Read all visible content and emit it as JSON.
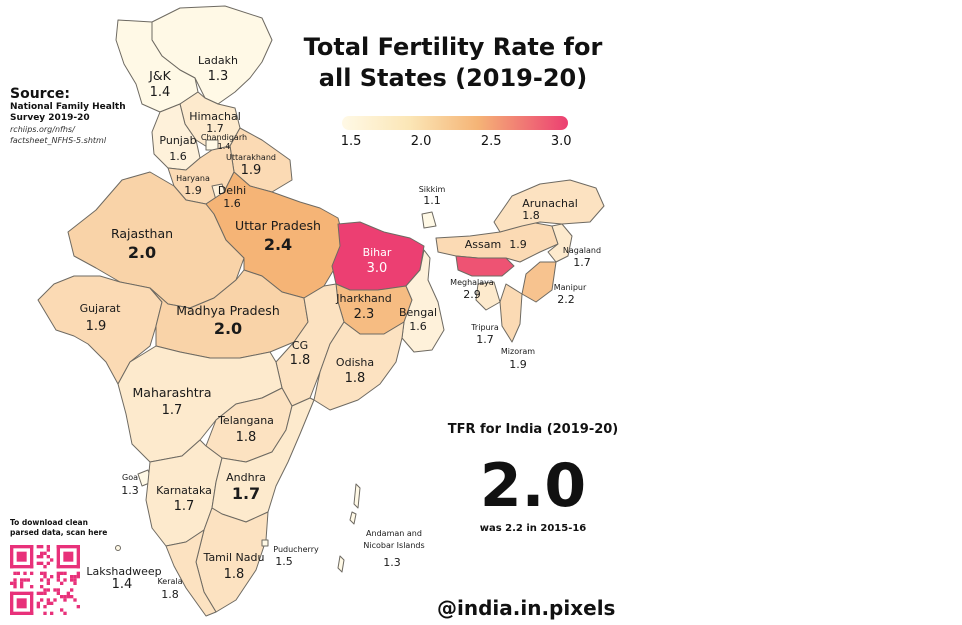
{
  "title": "Total Fertility Rate for all States (2019-20)",
  "legend": {
    "ticks": [
      "1.5",
      "2.0",
      "2.5",
      "3.0"
    ],
    "range": [
      1.5,
      3.0
    ],
    "colors": {
      "low": "#fff9e6",
      "mid": "#f5b476",
      "high": "#ec3f72"
    }
  },
  "source": {
    "heading": "Source:",
    "line1": "National Family Health",
    "line2": "Survey 2019-20",
    "url1": "rchiips.org/nfhs/",
    "url2": "factsheet_NFHS-5.shtml"
  },
  "national": {
    "heading": "TFR for India (2019-20)",
    "value": "2.0",
    "note": "was 2.2 in 2015-16"
  },
  "download": {
    "line1": "To download clean",
    "line2": "parsed data, scan here"
  },
  "handle": "@india.in.pixels",
  "states": {
    "ladakh": {
      "name": "Ladakh",
      "value": "1.3"
    },
    "jk": {
      "name": "J&K",
      "value": "1.4"
    },
    "himachal": {
      "name": "Himachal",
      "value": "1.7"
    },
    "chandigarh": {
      "name": "Chandigarh",
      "value": "1.4"
    },
    "punjab": {
      "name": "Punjab",
      "value": "1.6"
    },
    "uttarakhand": {
      "name": "Uttarakhand",
      "value": "1.9"
    },
    "haryana": {
      "name": "Haryana",
      "value": "1.9"
    },
    "delhi": {
      "name": "Delhi",
      "value": "1.6"
    },
    "rajasthan": {
      "name": "Rajasthan",
      "value": "2.0"
    },
    "uttar_pradesh": {
      "name": "Uttar Pradesh",
      "value": "2.4"
    },
    "bihar": {
      "name": "Bihar",
      "value": "3.0"
    },
    "sikkim": {
      "name": "Sikkim",
      "value": "1.1"
    },
    "arunachal": {
      "name": "Arunachal",
      "value": "1.8"
    },
    "assam": {
      "name": "Assam",
      "value": "1.9"
    },
    "nagaland": {
      "name": "Nagaland",
      "value": "1.7"
    },
    "meghalaya": {
      "name": "Meghalaya",
      "value": "2.9"
    },
    "manipur": {
      "name": "Manipur",
      "value": "2.2"
    },
    "tripura": {
      "name": "Tripura",
      "value": "1.7"
    },
    "mizoram": {
      "name": "Mizoram",
      "value": "1.9"
    },
    "gujarat": {
      "name": "Gujarat",
      "value": "1.9"
    },
    "madhya_pradesh": {
      "name": "Madhya Pradesh",
      "value": "2.0"
    },
    "jharkhand": {
      "name": "Jharkhand",
      "value": "2.3"
    },
    "bengal": {
      "name": "Bengal",
      "value": "1.6"
    },
    "cg": {
      "name": "CG",
      "value": "1.8"
    },
    "odisha": {
      "name": "Odisha",
      "value": "1.8"
    },
    "maharashtra": {
      "name": "Maharashtra",
      "value": "1.7"
    },
    "telangana": {
      "name": "Telangana",
      "value": "1.8"
    },
    "goa": {
      "name": "Goa",
      "value": "1.3"
    },
    "karnataka": {
      "name": "Karnataka",
      "value": "1.7"
    },
    "andhra": {
      "name": "Andhra",
      "value": "1.7"
    },
    "andaman": {
      "name1": "Andaman and",
      "name2": "Nicobar Islands",
      "value": "1.3"
    },
    "puducherry": {
      "name": "Puducherry",
      "value": "1.5"
    },
    "tamil_nadu": {
      "name": "Tamil Nadu",
      "value": "1.8"
    },
    "lakshadweep": {
      "name": "Lakshadweep",
      "value": "1.4"
    },
    "kerala": {
      "name": "Kerala",
      "value": "1.8"
    }
  }
}
